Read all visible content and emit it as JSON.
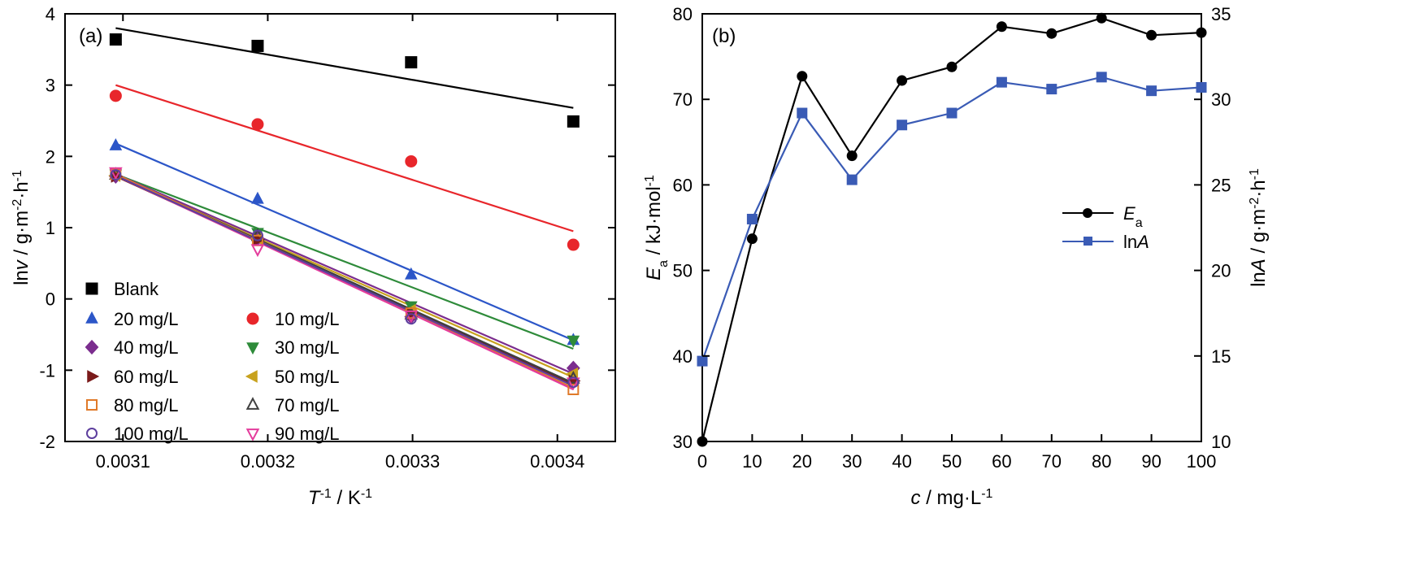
{
  "chart_data": [
    {
      "panel_label": "(a)",
      "type": "scatter",
      "xlabel": {
        "main": "T",
        "sup": "-1",
        "rest": " / K",
        "sup2": "-1"
      },
      "ylabel": {
        "pre": "ln",
        "italic": "v",
        "rest": " / g·m",
        "sup": "-2",
        "rest2": "·h",
        "sup2": "-1"
      },
      "xlim": [
        0.00306,
        0.00344
      ],
      "ylim": [
        -2,
        4
      ],
      "xticks": [
        {
          "value": 0.0031,
          "label": "0.0031"
        },
        {
          "value": 0.0032,
          "label": "0.0032"
        },
        {
          "value": 0.0033,
          "label": "0.0033"
        },
        {
          "value": 0.0034,
          "label": "0.0034"
        }
      ],
      "yticks": [
        {
          "value": -2,
          "label": "-2"
        },
        {
          "value": -1,
          "label": "-1"
        },
        {
          "value": 0,
          "label": "0"
        },
        {
          "value": 1,
          "label": "1"
        },
        {
          "value": 2,
          "label": "2"
        },
        {
          "value": 3,
          "label": "3"
        },
        {
          "value": 4,
          "label": "4"
        }
      ],
      "x": [
        0.003095,
        0.003193,
        0.003299,
        0.003411
      ],
      "series": [
        {
          "name": "Blank",
          "marker": "square",
          "color": "#000000",
          "values": [
            3.64,
            3.55,
            3.32,
            2.49
          ],
          "fit": [
            3.8,
            2.68
          ]
        },
        {
          "name": "10 mg/L",
          "marker": "circle",
          "color": "#e8262b",
          "values": [
            2.85,
            2.45,
            1.93,
            0.76
          ],
          "fit": [
            3.0,
            0.95
          ]
        },
        {
          "name": "20 mg/L",
          "marker": "triangle-up",
          "color": "#2c56c8",
          "values": [
            2.15,
            1.4,
            0.34,
            -0.58
          ],
          "fit": [
            2.18,
            -0.58
          ]
        },
        {
          "name": "30 mg/L",
          "marker": "triangle-down",
          "color": "#2e8b3a",
          "values": [
            1.75,
            0.93,
            -0.1,
            -0.58
          ],
          "fit": [
            1.75,
            -0.7
          ]
        },
        {
          "name": "40 mg/L",
          "marker": "diamond",
          "color": "#7b2d8e",
          "values": [
            1.72,
            0.85,
            -0.25,
            -0.97
          ],
          "fit": [
            1.75,
            -1.05
          ]
        },
        {
          "name": "50 mg/L",
          "marker": "triangle-left",
          "color": "#c8a21e",
          "values": [
            1.73,
            0.85,
            -0.16,
            -1.05
          ],
          "fit": [
            1.73,
            -1.1
          ]
        },
        {
          "name": "60 mg/L",
          "marker": "triangle-right",
          "color": "#7a1a1a",
          "values": [
            1.72,
            0.83,
            -0.2,
            -1.15
          ],
          "fit": [
            1.72,
            -1.2
          ]
        },
        {
          "name": "70 mg/L",
          "marker": "triangle-up-open",
          "color": "#404040",
          "values": [
            1.74,
            0.88,
            -0.22,
            -1.12
          ],
          "fit": [
            1.74,
            -1.18
          ]
        },
        {
          "name": "80 mg/L",
          "marker": "square-open",
          "color": "#e07a2a",
          "values": [
            1.75,
            0.82,
            -0.2,
            -1.27
          ],
          "fit": [
            1.75,
            -1.25
          ]
        },
        {
          "name": "90 mg/L",
          "marker": "triangle-down-open",
          "color": "#e43c9c",
          "values": [
            1.78,
            0.7,
            -0.23,
            -1.17
          ],
          "fit": [
            1.73,
            -1.27
          ]
        },
        {
          "name": "100 mg/L",
          "marker": "circle-open",
          "color": "#5d3e9e",
          "values": [
            1.74,
            0.89,
            -0.28,
            -1.17
          ],
          "fit": [
            1.73,
            -1.22
          ]
        }
      ],
      "legend_position": "bottom-left"
    },
    {
      "panel_label": "(b)",
      "type": "line",
      "xlabel": {
        "italic": "c",
        "rest": " / mg·L",
        "sup": "-1"
      },
      "ylabel_left": {
        "italic": "E",
        "sub": "a",
        "rest": " / kJ·mol",
        "sup": "-1"
      },
      "ylabel_right": {
        "pre": "ln",
        "italic": "A",
        "rest": " / g·m",
        "sup": "-2",
        "rest2": "·h",
        "sup2": "-1"
      },
      "xlim": [
        0,
        100
      ],
      "ylim_left": [
        30,
        80
      ],
      "ylim_right": [
        10,
        35
      ],
      "xticks": [
        {
          "value": 0,
          "label": "0"
        },
        {
          "value": 10,
          "label": "10"
        },
        {
          "value": 20,
          "label": "20"
        },
        {
          "value": 30,
          "label": "30"
        },
        {
          "value": 40,
          "label": "40"
        },
        {
          "value": 50,
          "label": "50"
        },
        {
          "value": 60,
          "label": "60"
        },
        {
          "value": 70,
          "label": "70"
        },
        {
          "value": 80,
          "label": "80"
        },
        {
          "value": 90,
          "label": "90"
        },
        {
          "value": 100,
          "label": "100"
        }
      ],
      "yticks_left": [
        {
          "value": 30,
          "label": "30"
        },
        {
          "value": 40,
          "label": "40"
        },
        {
          "value": 50,
          "label": "50"
        },
        {
          "value": 60,
          "label": "60"
        },
        {
          "value": 70,
          "label": "70"
        },
        {
          "value": 80,
          "label": "80"
        }
      ],
      "yticks_right": [
        {
          "value": 10,
          "label": "10"
        },
        {
          "value": 15,
          "label": "15"
        },
        {
          "value": 20,
          "label": "20"
        },
        {
          "value": 25,
          "label": "25"
        },
        {
          "value": 30,
          "label": "30"
        },
        {
          "value": 35,
          "label": "35"
        }
      ],
      "x": [
        0,
        10,
        20,
        30,
        40,
        50,
        60,
        70,
        80,
        90,
        100
      ],
      "series": [
        {
          "name_italic": "E",
          "name_sub": "a",
          "axis": "left",
          "marker": "circle",
          "color": "#000000",
          "values": [
            30.0,
            53.7,
            72.7,
            63.4,
            72.2,
            73.8,
            78.5,
            77.7,
            79.5,
            77.5,
            77.8
          ]
        },
        {
          "name_pre": "ln",
          "name_italic": "A",
          "axis": "right",
          "marker": "square",
          "color": "#3a5bb5",
          "values": [
            14.7,
            23.0,
            29.2,
            25.3,
            28.5,
            29.2,
            31.0,
            30.6,
            31.3,
            30.5,
            30.7
          ]
        }
      ],
      "legend_position": "center-right"
    }
  ]
}
